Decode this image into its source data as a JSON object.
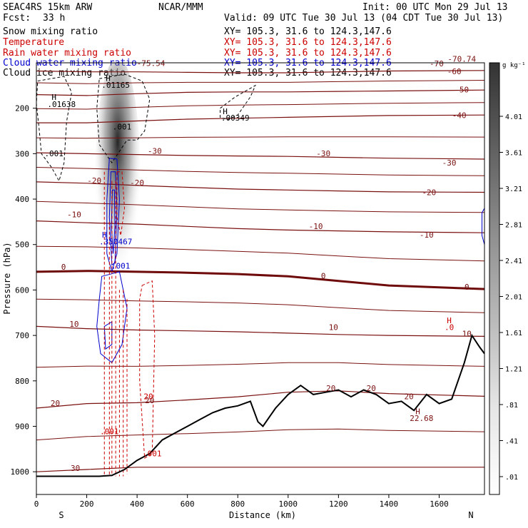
{
  "header": {
    "model": "SEAC4RS 15km ARW",
    "org": "NCAR/MMM",
    "init": "Init: 00 UTC Mon 29 Jul 13",
    "fcst_label": "Fcst:",
    "fcst_value": "33 h",
    "valid": "Valid: 09 UTC Tue 30 Jul 13 (04 CDT Tue 30 Jul 13)"
  },
  "fields": [
    {
      "name": "Snow mixing ratio",
      "xy": "XY= 105.3, 31.6 to 124.3,147.6",
      "color": "#000000"
    },
    {
      "name": "Temperature",
      "xy": "XY= 105.3, 31.6 to 124.3,147.6",
      "color": "#cc0000"
    },
    {
      "name": "Rain water mixing ratio",
      "xy": "XY= 105.3, 31.6 to 124.3,147.6",
      "color": "#cc0000"
    },
    {
      "name": "Cloud water mixing ratio",
      "xy": "XY= 105.3, 31.6 to 124.3,147.6",
      "color": "#0000cc"
    },
    {
      "name": "Cloud ice mixing ratio",
      "xy": "XY= 105.3, 31.6 to 124.3,147.6",
      "color": "#000000"
    }
  ],
  "colors": {
    "temperature": "#7a1010",
    "temperature_zero": "#6e0a0a",
    "rain": "#cc0000",
    "cloud_water": "#0000cc",
    "snow": "#000000",
    "terrain": "#000000"
  },
  "chart_data": {
    "type": "cross-section",
    "xlabel": "Distance (km)",
    "ylabel": "Pressure (hPa)",
    "xlim": [
      0,
      1780
    ],
    "ylim": [
      1050,
      100
    ],
    "x_ticks": [
      0,
      200,
      400,
      600,
      800,
      1000,
      1200,
      1400,
      1600
    ],
    "y_ticks": [
      200,
      300,
      400,
      500,
      600,
      700,
      800,
      900,
      1000
    ],
    "end_labels": {
      "left": "S",
      "right": "N"
    },
    "colorbar": {
      "unit": "g kg⁻¹",
      "ticks": [
        "4.01",
        "3.61",
        "3.21",
        "2.81",
        "2.41",
        "2.01",
        "1.61",
        "1.21",
        ".81",
        ".41",
        ".01"
      ]
    },
    "temperature_contours": [
      {
        "value": -60,
        "label": "-60",
        "pressures": [
          118,
          120,
          120,
          121,
          122,
          122,
          120,
          118,
          117
        ]
      },
      {
        "value": -50,
        "label": "-50",
        "pressures": [
          170,
          172,
          168,
          165,
          164,
          164,
          163,
          162,
          160
        ]
      },
      {
        "value": -40,
        "label": "-40",
        "pressures": [
          232,
          232,
          228,
          224,
          222,
          220,
          218,
          216,
          215
        ]
      },
      {
        "value": -30,
        "label": "-30",
        "pressures": [
          298,
          300,
          302,
          304,
          305,
          306,
          308,
          310,
          312
        ]
      },
      {
        "value": -20,
        "label": "-20",
        "pressures": [
          362,
          365,
          370,
          374,
          378,
          380,
          382,
          384,
          385
        ]
      },
      {
        "value": -10,
        "label": "-10",
        "pressures": [
          448,
          452,
          455,
          460,
          465,
          468,
          470,
          472,
          474
        ]
      },
      {
        "value": 0,
        "label": "0",
        "pressures": [
          560,
          558,
          560,
          562,
          565,
          570,
          580,
          590,
          598
        ]
      },
      {
        "value": 10,
        "label": "10",
        "pressures": [
          680,
          685,
          688,
          690,
          692,
          695,
          698,
          700,
          702
        ]
      },
      {
        "value": 20,
        "label": "20",
        "pressures": [
          860,
          850,
          848,
          842,
          835,
          825,
          822,
          828,
          834
        ]
      },
      {
        "value": 30,
        "label": "30",
        "pressures": [
          1000,
          995,
          990,
          990,
          990,
          990,
          990,
          990,
          990
        ]
      }
    ],
    "contour_x": [
      0,
      200,
      400,
      600,
      800,
      1000,
      1200,
      1400,
      1780
    ],
    "terrain": {
      "x": [
        0,
        250,
        300,
        350,
        400,
        450,
        500,
        550,
        600,
        650,
        700,
        750,
        800,
        850,
        880,
        900,
        950,
        1000,
        1050,
        1100,
        1150,
        1200,
        1250,
        1300,
        1350,
        1400,
        1450,
        1500,
        1550,
        1600,
        1650,
        1700,
        1730,
        1760,
        1780
      ],
      "p": [
        1010,
        1010,
        1008,
        995,
        975,
        960,
        930,
        915,
        900,
        885,
        870,
        860,
        855,
        845,
        890,
        900,
        860,
        830,
        810,
        830,
        825,
        820,
        835,
        820,
        830,
        850,
        845,
        865,
        830,
        850,
        840,
        760,
        700,
        725,
        740
      ]
    },
    "labels": [
      {
        "text": "-75.54",
        "x": 455,
        "p": 107,
        "color": "#7a1010"
      },
      {
        "text": "-70.74",
        "x": 1690,
        "p": 98,
        "color": "#7a1010"
      },
      {
        "text": "-70",
        "x": 1590,
        "p": 108,
        "color": "#7a1010"
      },
      {
        "text": "-60",
        "x": 1660,
        "p": 125,
        "color": "#7a1010"
      },
      {
        "text": "-50",
        "x": 1690,
        "p": 165,
        "color": "#7a1010"
      },
      {
        "text": "-40",
        "x": 1680,
        "p": 222,
        "color": "#7a1010"
      },
      {
        "text": "-30",
        "x": 470,
        "p": 300,
        "color": "#7a1010"
      },
      {
        "text": "-30",
        "x": 1140,
        "p": 306,
        "color": "#7a1010"
      },
      {
        "text": "-30",
        "x": 1640,
        "p": 326,
        "color": "#7a1010"
      },
      {
        "text": "-20",
        "x": 230,
        "p": 365,
        "color": "#7a1010"
      },
      {
        "text": "-20",
        "x": 400,
        "p": 370,
        "color": "#7a1010"
      },
      {
        "text": "-20",
        "x": 1560,
        "p": 391,
        "color": "#7a1010"
      },
      {
        "text": "-10",
        "x": 150,
        "p": 440,
        "color": "#7a1010"
      },
      {
        "text": "-10",
        "x": 1110,
        "p": 466,
        "color": "#7a1010"
      },
      {
        "text": "-10",
        "x": 1550,
        "p": 485,
        "color": "#7a1010"
      },
      {
        "text": "0",
        "x": 108,
        "p": 555,
        "color": "#6e0a0a"
      },
      {
        "text": "0",
        "x": 1140,
        "p": 575,
        "color": "#6e0a0a"
      },
      {
        "text": "0",
        "x": 1710,
        "p": 599,
        "color": "#6e0a0a"
      },
      {
        "text": "10",
        "x": 150,
        "p": 681,
        "color": "#7a1010"
      },
      {
        "text": "10",
        "x": 1180,
        "p": 688,
        "color": "#7a1010"
      },
      {
        "text": "10",
        "x": 1710,
        "p": 702,
        "color": "#7a1010"
      },
      {
        "text": "20",
        "x": 75,
        "p": 855,
        "color": "#7a1010"
      },
      {
        "text": "20",
        "x": 450,
        "p": 849,
        "color": "#7a1010"
      },
      {
        "text": "20",
        "x": 1170,
        "p": 822,
        "color": "#7a1010"
      },
      {
        "text": "20",
        "x": 1330,
        "p": 822,
        "color": "#7a1010"
      },
      {
        "text": "20",
        "x": 1480,
        "p": 840,
        "color": "#7a1010"
      },
      {
        "text": "30",
        "x": 155,
        "p": 998,
        "color": "#7a1010"
      },
      {
        "text": "H",
        "x": 70,
        "p": 182,
        "color": "#000000"
      },
      {
        "text": ".01638",
        "x": 100,
        "p": 197,
        "color": "#000000"
      },
      {
        "text": ".001",
        "x": 70,
        "p": 306,
        "color": "#000000"
      },
      {
        "text": "H",
        "x": 285,
        "p": 140,
        "color": "#000000"
      },
      {
        "text": ".01165",
        "x": 315,
        "p": 155,
        "color": "#000000"
      },
      {
        "text": ".001",
        "x": 340,
        "p": 247,
        "color": "#000000"
      },
      {
        "text": "H",
        "x": 750,
        "p": 213,
        "color": "#000000"
      },
      {
        "text": ".00349",
        "x": 790,
        "p": 227,
        "color": "#000000"
      },
      {
        "text": "H",
        "x": 270,
        "p": 485,
        "color": "#0000cc"
      },
      {
        "text": ".350467",
        "x": 315,
        "p": 500,
        "color": "#0000cc"
      },
      {
        "text": ".001",
        "x": 335,
        "p": 553,
        "color": "#0000cc"
      },
      {
        "text": ".001",
        "x": 290,
        "p": 917,
        "color": "#cc0000"
      },
      {
        "text": ".001",
        "x": 460,
        "p": 966,
        "color": "#cc0000"
      },
      {
        "text": "20",
        "x": 445,
        "p": 840,
        "color": "#cc0000"
      },
      {
        "text": "H",
        "x": 1640,
        "p": 673,
        "color": "#cc0000"
      },
      {
        "text": ".0",
        "x": 1640,
        "p": 688,
        "color": "#cc0000"
      },
      {
        "text": "H",
        "x": 1515,
        "p": 873,
        "color": "#7a1010"
      },
      {
        "text": "22.68",
        "x": 1530,
        "p": 888,
        "color": "#7a1010"
      }
    ]
  }
}
